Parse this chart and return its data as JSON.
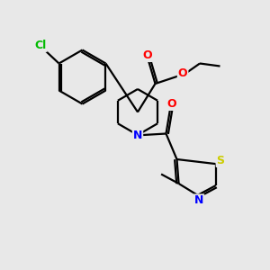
{
  "bg_color": "#e8e8e8",
  "bond_color": "#000000",
  "atom_colors": {
    "Cl": "#00bb00",
    "O": "#ff0000",
    "N": "#0000ff",
    "S": "#cccc00",
    "C": "#000000"
  },
  "lw": 1.6,
  "fontsize": 9
}
